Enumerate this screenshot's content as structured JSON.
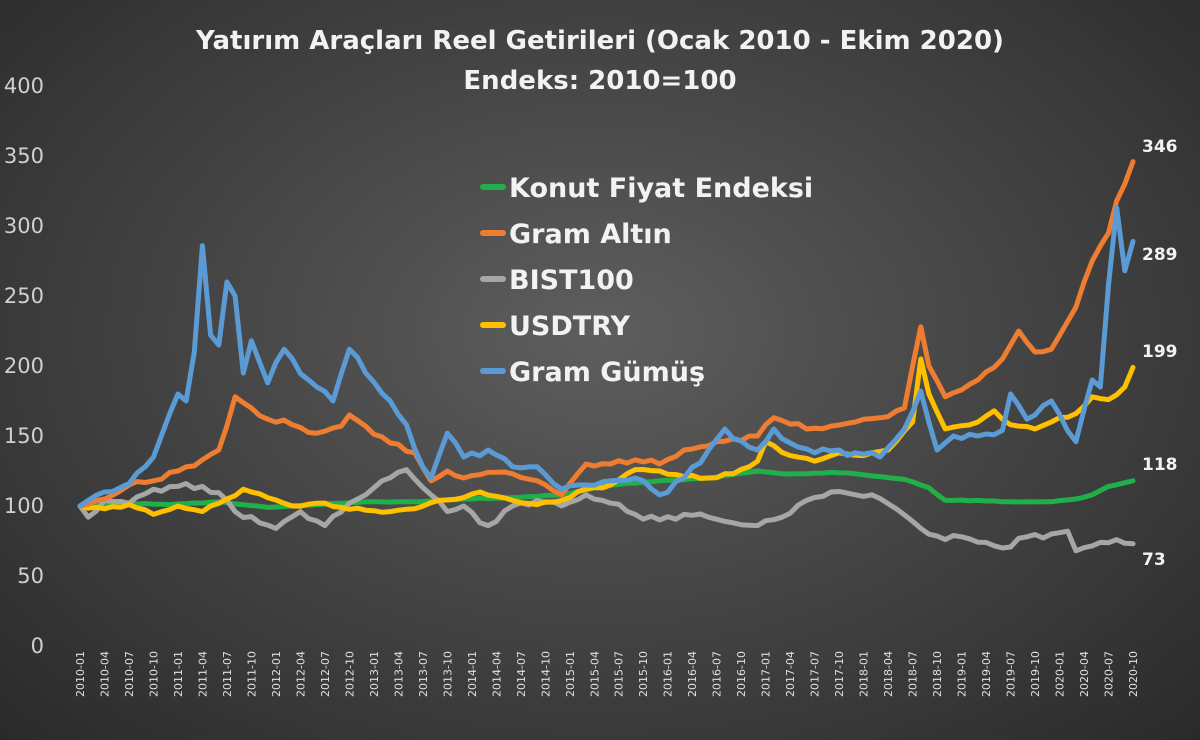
{
  "chart_data": {
    "type": "line",
    "title": "Yatırım Araçları Reel Getirileri  (Ocak 2010 - Ekim 2020)",
    "subtitle": "Endeks: 2010=100",
    "xlabel": "",
    "ylabel": "",
    "ylim": [
      0,
      400
    ],
    "yticks": [
      "0",
      "50",
      "100",
      "150",
      "200",
      "250",
      "300",
      "350",
      "400"
    ],
    "x_start": "2010-01",
    "x_end": "2020-10",
    "x_tick_step_months": 3,
    "grid": false,
    "legend_position": "center-top",
    "end_labels": [
      "346",
      "289",
      "199",
      "118",
      "73"
    ],
    "series": [
      {
        "name": "Konut Fiyat Endeksi",
        "color": "#1fb04a",
        "anchors": [
          [
            "2010-01",
            100
          ],
          [
            "2010-06",
            102
          ],
          [
            "2010-12",
            101
          ],
          [
            "2011-06",
            103
          ],
          [
            "2011-12",
            99
          ],
          [
            "2012-06",
            101
          ],
          [
            "2012-12",
            103
          ],
          [
            "2013-06",
            103
          ],
          [
            "2013-12",
            105
          ],
          [
            "2014-06",
            106
          ],
          [
            "2014-12",
            108
          ],
          [
            "2015-06",
            115
          ],
          [
            "2015-12",
            118
          ],
          [
            "2016-06",
            120
          ],
          [
            "2016-12",
            125
          ],
          [
            "2017-03",
            123
          ],
          [
            "2017-06",
            123
          ],
          [
            "2017-09",
            124
          ],
          [
            "2017-12",
            123
          ],
          [
            "2018-03",
            121
          ],
          [
            "2018-06",
            119
          ],
          [
            "2018-09",
            113
          ],
          [
            "2018-11",
            104
          ],
          [
            "2019-03",
            104
          ],
          [
            "2019-06",
            103
          ],
          [
            "2019-09",
            103
          ],
          [
            "2019-12",
            103
          ],
          [
            "2020-03",
            105
          ],
          [
            "2020-05",
            108
          ],
          [
            "2020-07",
            114
          ],
          [
            "2020-10",
            118
          ]
        ]
      },
      {
        "name": "Gram Altın",
        "color": "#ee7d31",
        "anchors": [
          [
            "2010-01",
            100
          ],
          [
            "2010-04",
            105
          ],
          [
            "2010-07",
            115
          ],
          [
            "2010-10",
            118
          ],
          [
            "2011-01",
            125
          ],
          [
            "2011-04",
            133
          ],
          [
            "2011-06",
            140
          ],
          [
            "2011-08",
            178
          ],
          [
            "2011-10",
            170
          ],
          [
            "2011-12",
            162
          ],
          [
            "2012-03",
            158
          ],
          [
            "2012-06",
            152
          ],
          [
            "2012-09",
            157
          ],
          [
            "2012-10",
            165
          ],
          [
            "2012-12",
            157
          ],
          [
            "2013-03",
            145
          ],
          [
            "2013-06",
            138
          ],
          [
            "2013-08",
            118
          ],
          [
            "2013-10",
            125
          ],
          [
            "2013-12",
            120
          ],
          [
            "2014-03",
            124
          ],
          [
            "2014-06",
            123
          ],
          [
            "2014-09",
            118
          ],
          [
            "2014-12",
            108
          ],
          [
            "2015-03",
            130
          ],
          [
            "2015-06",
            130
          ],
          [
            "2015-09",
            133
          ],
          [
            "2015-12",
            130
          ],
          [
            "2016-03",
            140
          ],
          [
            "2016-06",
            143
          ],
          [
            "2016-09",
            148
          ],
          [
            "2016-12",
            150
          ],
          [
            "2017-02",
            163
          ],
          [
            "2017-06",
            155
          ],
          [
            "2017-09",
            157
          ],
          [
            "2017-12",
            160
          ],
          [
            "2018-03",
            163
          ],
          [
            "2018-06",
            170
          ],
          [
            "2018-08",
            228
          ],
          [
            "2018-09",
            200
          ],
          [
            "2018-11",
            178
          ],
          [
            "2019-03",
            190
          ],
          [
            "2019-06",
            205
          ],
          [
            "2019-08",
            225
          ],
          [
            "2019-10",
            210
          ],
          [
            "2019-12",
            212
          ],
          [
            "2020-03",
            242
          ],
          [
            "2020-05",
            275
          ],
          [
            "2020-07",
            295
          ],
          [
            "2020-08",
            318
          ],
          [
            "2020-09",
            330
          ],
          [
            "2020-10",
            346
          ]
        ]
      },
      {
        "name": "BIST100",
        "color": "#a6a6a6",
        "anchors": [
          [
            "2010-01",
            100
          ],
          [
            "2010-02",
            92
          ],
          [
            "2010-04",
            104
          ],
          [
            "2010-07",
            102
          ],
          [
            "2010-10",
            112
          ],
          [
            "2011-01",
            114
          ],
          [
            "2011-04",
            114
          ],
          [
            "2011-07",
            104
          ],
          [
            "2011-08",
            96
          ],
          [
            "2011-11",
            88
          ],
          [
            "2012-01",
            84
          ],
          [
            "2012-04",
            96
          ],
          [
            "2012-07",
            86
          ],
          [
            "2012-10",
            102
          ],
          [
            "2012-12",
            108
          ],
          [
            "2013-02",
            118
          ],
          [
            "2013-05",
            126
          ],
          [
            "2013-08",
            108
          ],
          [
            "2013-10",
            96
          ],
          [
            "2013-12",
            100
          ],
          [
            "2014-02",
            88
          ],
          [
            "2014-03",
            86
          ],
          [
            "2014-06",
            100
          ],
          [
            "2014-09",
            104
          ],
          [
            "2014-12",
            100
          ],
          [
            "2015-03",
            108
          ],
          [
            "2015-06",
            102
          ],
          [
            "2015-09",
            94
          ],
          [
            "2015-12",
            90
          ],
          [
            "2016-03",
            94
          ],
          [
            "2016-06",
            92
          ],
          [
            "2016-09",
            88
          ],
          [
            "2016-12",
            86
          ],
          [
            "2017-03",
            92
          ],
          [
            "2017-06",
            104
          ],
          [
            "2017-09",
            110
          ],
          [
            "2017-12",
            108
          ],
          [
            "2018-02",
            108
          ],
          [
            "2018-05",
            98
          ],
          [
            "2018-08",
            84
          ],
          [
            "2018-11",
            76
          ],
          [
            "2019-01",
            78
          ],
          [
            "2019-04",
            74
          ],
          [
            "2019-06",
            70
          ],
          [
            "2019-09",
            78
          ],
          [
            "2019-12",
            80
          ],
          [
            "2020-02",
            82
          ],
          [
            "2020-03",
            68
          ],
          [
            "2020-06",
            74
          ],
          [
            "2020-08",
            76
          ],
          [
            "2020-10",
            73
          ]
        ]
      },
      {
        "name": "USDTRY",
        "color": "#ffc000",
        "anchors": [
          [
            "2010-01",
            100
          ],
          [
            "2010-04",
            98
          ],
          [
            "2010-07",
            101
          ],
          [
            "2010-10",
            94
          ],
          [
            "2011-01",
            100
          ],
          [
            "2011-04",
            96
          ],
          [
            "2011-07",
            105
          ],
          [
            "2011-09",
            112
          ],
          [
            "2011-12",
            106
          ],
          [
            "2012-03",
            100
          ],
          [
            "2012-06",
            102
          ],
          [
            "2012-09",
            99
          ],
          [
            "2012-12",
            97
          ],
          [
            "2013-03",
            96
          ],
          [
            "2013-06",
            98
          ],
          [
            "2013-09",
            104
          ],
          [
            "2013-12",
            106
          ],
          [
            "2014-02",
            110
          ],
          [
            "2014-06",
            104
          ],
          [
            "2014-09",
            101
          ],
          [
            "2014-12",
            104
          ],
          [
            "2015-03",
            112
          ],
          [
            "2015-06",
            115
          ],
          [
            "2015-09",
            126
          ],
          [
            "2015-12",
            125
          ],
          [
            "2016-03",
            121
          ],
          [
            "2016-06",
            120
          ],
          [
            "2016-09",
            123
          ],
          [
            "2016-12",
            132
          ],
          [
            "2017-01",
            146
          ],
          [
            "2017-04",
            136
          ],
          [
            "2017-07",
            132
          ],
          [
            "2017-10",
            138
          ],
          [
            "2018-01",
            136
          ],
          [
            "2018-04",
            140
          ],
          [
            "2018-07",
            160
          ],
          [
            "2018-08",
            205
          ],
          [
            "2018-09",
            180
          ],
          [
            "2018-11",
            155
          ],
          [
            "2019-03",
            160
          ],
          [
            "2019-05",
            168
          ],
          [
            "2019-07",
            158
          ],
          [
            "2019-10",
            155
          ],
          [
            "2019-12",
            160
          ],
          [
            "2020-03",
            166
          ],
          [
            "2020-05",
            178
          ],
          [
            "2020-07",
            176
          ],
          [
            "2020-09",
            185
          ],
          [
            "2020-10",
            199
          ]
        ]
      },
      {
        "name": "Gram Gümüş",
        "color": "#5b9bd5",
        "anchors": [
          [
            "2010-01",
            100
          ],
          [
            "2010-04",
            110
          ],
          [
            "2010-07",
            116
          ],
          [
            "2010-10",
            135
          ],
          [
            "2011-01",
            180
          ],
          [
            "2011-02",
            175
          ],
          [
            "2011-03",
            210
          ],
          [
            "2011-04",
            286
          ],
          [
            "2011-05",
            222
          ],
          [
            "2011-06",
            215
          ],
          [
            "2011-07",
            260
          ],
          [
            "2011-08",
            250
          ],
          [
            "2011-09",
            195
          ],
          [
            "2011-10",
            218
          ],
          [
            "2011-12",
            188
          ],
          [
            "2012-02",
            212
          ],
          [
            "2012-05",
            190
          ],
          [
            "2012-08",
            175
          ],
          [
            "2012-10",
            212
          ],
          [
            "2012-12",
            195
          ],
          [
            "2013-03",
            175
          ],
          [
            "2013-05",
            158
          ],
          [
            "2013-07",
            128
          ],
          [
            "2013-08",
            120
          ],
          [
            "2013-10",
            152
          ],
          [
            "2013-12",
            135
          ],
          [
            "2014-03",
            140
          ],
          [
            "2014-06",
            128
          ],
          [
            "2014-09",
            128
          ],
          [
            "2014-12",
            112
          ],
          [
            "2015-03",
            115
          ],
          [
            "2015-06",
            118
          ],
          [
            "2015-09",
            120
          ],
          [
            "2015-12",
            108
          ],
          [
            "2016-03",
            120
          ],
          [
            "2016-06",
            140
          ],
          [
            "2016-08",
            155
          ],
          [
            "2016-11",
            142
          ],
          [
            "2016-12",
            140
          ],
          [
            "2017-02",
            155
          ],
          [
            "2017-04",
            145
          ],
          [
            "2017-07",
            138
          ],
          [
            "2017-10",
            140
          ],
          [
            "2017-12",
            138
          ],
          [
            "2018-03",
            135
          ],
          [
            "2018-06",
            155
          ],
          [
            "2018-08",
            182
          ],
          [
            "2018-10",
            140
          ],
          [
            "2018-12",
            150
          ],
          [
            "2019-03",
            150
          ],
          [
            "2019-06",
            154
          ],
          [
            "2019-07",
            180
          ],
          [
            "2019-09",
            162
          ],
          [
            "2019-12",
            175
          ],
          [
            "2020-03",
            146
          ],
          [
            "2020-05",
            190
          ],
          [
            "2020-06",
            185
          ],
          [
            "2020-07",
            258
          ],
          [
            "2020-08",
            313
          ],
          [
            "2020-09",
            268
          ],
          [
            "2020-10",
            289
          ]
        ]
      }
    ]
  }
}
